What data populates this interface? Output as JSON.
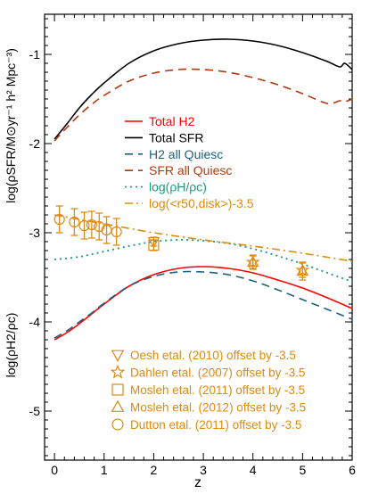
{
  "chart_data": {
    "type": "line",
    "xlabel": "z",
    "ylabel_outer": "log(ρSFR/M⊙yr⁻¹ h² Mpc⁻³)",
    "ylabel_inner": "log(ρH2/ρc)",
    "xlim": [
      -0.2,
      6
    ],
    "ylim": [
      -5.55,
      -0.55
    ],
    "x_ticks": [
      0,
      1,
      2,
      3,
      4,
      5,
      6
    ],
    "y_ticks": [
      -5,
      -4,
      -3,
      -2,
      -1
    ],
    "colors": {
      "total_h2": "#ff0000",
      "total_sfr": "#000000",
      "h2_quiesc": "#1f5f7f",
      "sfr_quiesc": "#b03a10",
      "rho_ratio": "#1a9b7b",
      "r50_disk": "#e08a10",
      "observations": "#e08a10"
    },
    "series": [
      {
        "name": "Total H2",
        "style": "solid",
        "x": [
          0.0,
          0.25,
          0.5,
          0.75,
          1.0,
          1.5,
          2.0,
          2.5,
          3.0,
          3.5,
          4.0,
          4.5,
          5.0,
          5.5,
          6.0
        ],
        "values": [
          -4.2,
          -4.12,
          -4.02,
          -3.91,
          -3.8,
          -3.6,
          -3.47,
          -3.4,
          -3.38,
          -3.4,
          -3.45,
          -3.53,
          -3.62,
          -3.73,
          -3.85
        ]
      },
      {
        "name": "Total SFR",
        "style": "solid",
        "x": [
          0.0,
          0.25,
          0.5,
          0.75,
          1.0,
          1.5,
          2.0,
          2.5,
          3.0,
          3.5,
          4.0,
          4.5,
          5.0,
          5.5,
          5.75,
          5.85,
          6.0
        ],
        "values": [
          -1.95,
          -1.78,
          -1.6,
          -1.45,
          -1.32,
          -1.1,
          -0.96,
          -0.88,
          -0.84,
          -0.83,
          -0.85,
          -0.9,
          -0.98,
          -1.08,
          -1.14,
          -1.1,
          -1.17
        ]
      },
      {
        "name": "H2 all Quiesc",
        "style": "dashed",
        "x": [
          0.0,
          0.25,
          0.5,
          0.75,
          1.0,
          1.5,
          2.0,
          2.5,
          3.0,
          3.5,
          4.0,
          4.5,
          5.0,
          5.5,
          6.0
        ],
        "values": [
          -4.18,
          -4.1,
          -4.0,
          -3.9,
          -3.79,
          -3.6,
          -3.49,
          -3.44,
          -3.44,
          -3.47,
          -3.54,
          -3.64,
          -3.75,
          -3.86,
          -3.97
        ]
      },
      {
        "name": "SFR all Quiesc",
        "style": "dashed",
        "x": [
          0.0,
          0.25,
          0.5,
          0.75,
          1.0,
          1.5,
          2.0,
          2.5,
          3.0,
          3.5,
          4.0,
          4.5,
          5.0,
          5.5,
          5.75,
          5.85,
          6.0
        ],
        "values": [
          -1.97,
          -1.82,
          -1.68,
          -1.56,
          -1.46,
          -1.3,
          -1.21,
          -1.17,
          -1.17,
          -1.2,
          -1.26,
          -1.34,
          -1.44,
          -1.55,
          -1.52,
          -1.53,
          -1.5
        ]
      },
      {
        "name": "log(ρH/ρc)",
        "style": "dotted",
        "x": [
          0.0,
          0.5,
          1.0,
          1.5,
          2.0,
          2.5,
          3.0,
          3.5,
          4.0,
          4.5,
          5.0,
          5.5,
          6.0
        ],
        "values": [
          -3.3,
          -3.27,
          -3.21,
          -3.15,
          -3.1,
          -3.08,
          -3.09,
          -3.12,
          -3.18,
          -3.26,
          -3.35,
          -3.45,
          -3.55
        ]
      },
      {
        "name": "log(<r50,disk>)-3.5",
        "style": "dashdot",
        "x": [
          0.0,
          1.0,
          2.0,
          3.0,
          4.0,
          5.0,
          6.0
        ],
        "values": [
          -2.8,
          -2.9,
          -3.0,
          -3.08,
          -3.15,
          -3.23,
          -3.32
        ]
      }
    ],
    "observations": [
      {
        "label": "Oesh etal. (2010) offset by -3.5",
        "marker": "triangle-down",
        "points": [
          {
            "x": 2.0,
            "y": -3.1,
            "err": 0.05
          }
        ]
      },
      {
        "label": "Dahlen etal. (2007) offset by -3.5",
        "marker": "star",
        "points": [
          {
            "x": 4.0,
            "y": -3.33,
            "err": 0.07
          },
          {
            "x": 5.0,
            "y": -3.42,
            "err": 0.08
          }
        ]
      },
      {
        "label": "Mosleh etal. (2011) offset by -3.5",
        "marker": "square",
        "points": [
          {
            "x": 2.0,
            "y": -3.14,
            "err": 0.06
          }
        ]
      },
      {
        "label": "Mosleh etal. (2012) offset by -3.5",
        "marker": "triangle-up",
        "points": [
          {
            "x": 4.0,
            "y": -3.33,
            "err": 0.08
          },
          {
            "x": 5.0,
            "y": -3.43,
            "err": 0.1
          }
        ]
      },
      {
        "label": "Dutton etal. (2011) offset by -3.5",
        "marker": "circle",
        "points": [
          {
            "x": 0.1,
            "y": -2.85,
            "err": 0.15
          },
          {
            "x": 0.4,
            "y": -2.88,
            "err": 0.15
          },
          {
            "x": 0.6,
            "y": -2.92,
            "err": 0.15
          },
          {
            "x": 0.75,
            "y": -2.91,
            "err": 0.15
          },
          {
            "x": 0.9,
            "y": -2.93,
            "err": 0.15
          },
          {
            "x": 1.05,
            "y": -2.97,
            "err": 0.15
          },
          {
            "x": 1.25,
            "y": -2.99,
            "err": 0.15
          }
        ]
      }
    ],
    "legend_placement": "center-left"
  }
}
